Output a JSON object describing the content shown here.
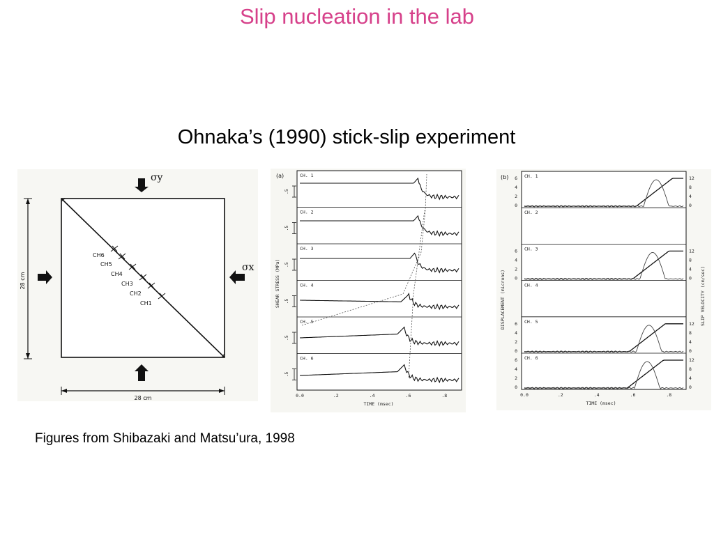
{
  "slide": {
    "title": "Slip nucleation in the lab",
    "subtitle": "Ohnaka’s (1990) stick-slip experiment",
    "caption": "Figures from Shibazaki and Matsu’ura, 1998"
  },
  "specimen": {
    "sigma_y": "σy",
    "sigma_x": "σx",
    "side_label": "28 cm",
    "bottom_label": "28 cm",
    "channels": [
      "CH6",
      "CH5",
      "CH4",
      "CH3",
      "CH2",
      "CH1"
    ]
  },
  "panel_a": {
    "label": "(a)",
    "ylabel": "SHEAR STRESS (MPa)",
    "xlabel": "TIME (msec)",
    "scale_label": ".5",
    "x_ticks": [
      "0.0",
      ".2",
      ".4",
      ".6",
      ".8"
    ],
    "channels": [
      "CH. 1",
      "CH. 2",
      "CH. 3",
      "CH. 4",
      "CH. 5",
      "CH. 6"
    ]
  },
  "panel_b": {
    "label": "(b)",
    "ylabel_left": "DISPLACEMENT (microns)",
    "ylabel_right": "SLIP VELOCITY (cm/sec)",
    "xlabel": "TIME (msec)",
    "x_ticks": [
      "0.0",
      ".2",
      ".4",
      ".6",
      ".8"
    ],
    "disp_ticks": [
      "6",
      "4",
      "2",
      "0"
    ],
    "vel_ticks": [
      "12",
      "8",
      "4",
      "0"
    ],
    "channels": [
      "CH. 1",
      "CH. 2",
      "CH. 3",
      "CH. 4",
      "CH. 5",
      "CH. 6"
    ]
  }
}
